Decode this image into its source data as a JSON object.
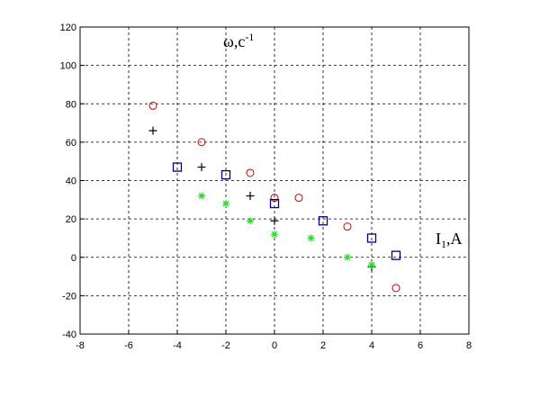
{
  "chart_data": {
    "type": "scatter",
    "ylabel": {
      "base": "ω,c",
      "sup": "-1"
    },
    "xlabel": {
      "base": "I",
      "sub": "1",
      "rest": ",A"
    },
    "xlim": [
      -8,
      8
    ],
    "xticks": [
      -8,
      -6,
      -4,
      -2,
      0,
      2,
      4,
      6,
      8
    ],
    "ylim": [
      -40,
      120
    ],
    "yticks": [
      -40,
      -20,
      0,
      20,
      40,
      60,
      80,
      100,
      120
    ],
    "grid": true,
    "series": [
      {
        "marker": "circle",
        "color": "#cc0000",
        "x": [
          -5,
          -3,
          -1,
          0,
          1,
          3,
          5
        ],
        "values": [
          79,
          60,
          44,
          31,
          31,
          16,
          -16
        ]
      },
      {
        "marker": "plus",
        "color": "#000000",
        "x": [
          -5,
          -3,
          -1,
          0,
          4
        ],
        "values": [
          66,
          47,
          32,
          19,
          -5
        ]
      },
      {
        "marker": "square",
        "color": "#000080",
        "x": [
          -4,
          -2,
          0,
          2,
          4,
          5
        ],
        "values": [
          47,
          43,
          28,
          19,
          10,
          1
        ]
      },
      {
        "marker": "star",
        "color": "#22dd22",
        "x": [
          -3,
          -2,
          -1,
          0,
          1.5,
          3,
          4
        ],
        "values": [
          32,
          28,
          19,
          12,
          10,
          0,
          -4
        ]
      }
    ]
  }
}
